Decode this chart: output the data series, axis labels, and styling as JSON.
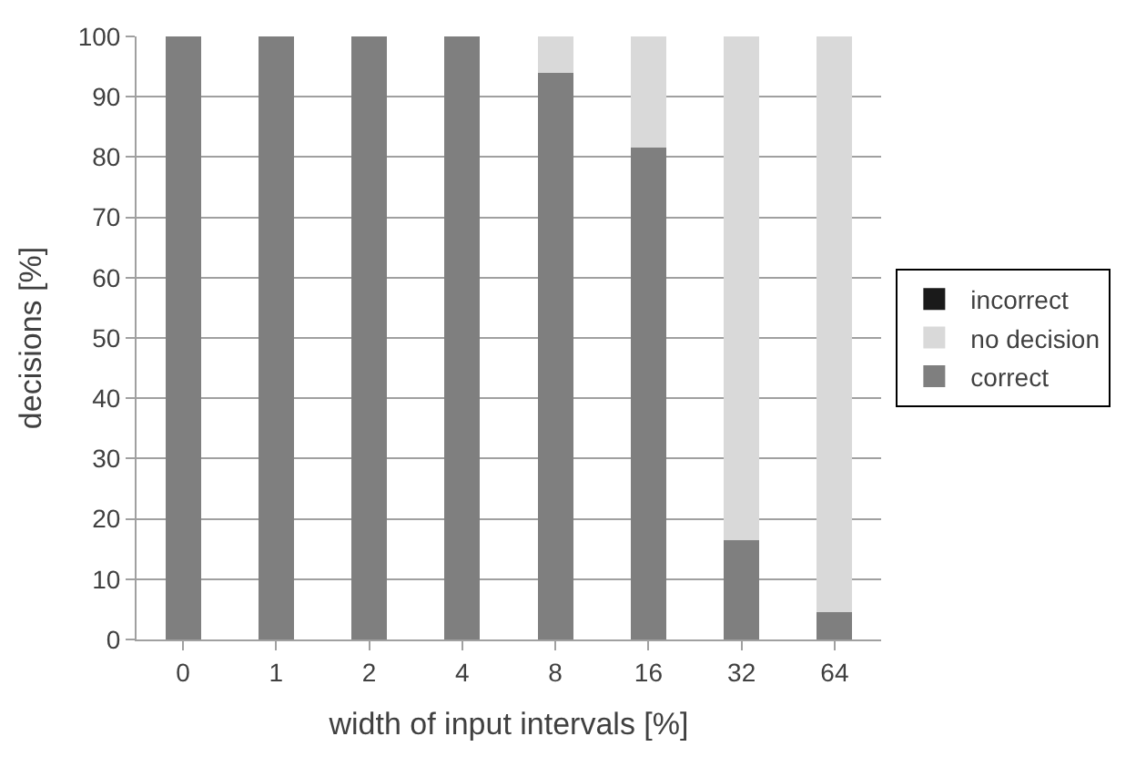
{
  "chart_data": {
    "type": "bar",
    "stacked": true,
    "xlabel": "width of input intervals [%]",
    "ylabel": "decisions [%]",
    "categories": [
      "0",
      "1",
      "2",
      "4",
      "8",
      "16",
      "32",
      "64"
    ],
    "series": [
      {
        "name": "correct",
        "color": "#7f7f7f",
        "values": [
          100,
          100,
          100,
          100,
          94,
          81.5,
          16.5,
          4.5
        ]
      },
      {
        "name": "no decision",
        "color": "#d9d9d9",
        "values": [
          0,
          0,
          0,
          0,
          6,
          18.5,
          83.5,
          95.5
        ]
      },
      {
        "name": "incorrect",
        "color": "#1a1a1a",
        "values": [
          0,
          0,
          0,
          0,
          0,
          0,
          0,
          0
        ]
      }
    ],
    "ylim": [
      0,
      100
    ],
    "yticks": [
      0,
      10,
      20,
      30,
      40,
      50,
      60,
      70,
      80,
      90,
      100
    ],
    "grid": "y",
    "legend": "right"
  }
}
